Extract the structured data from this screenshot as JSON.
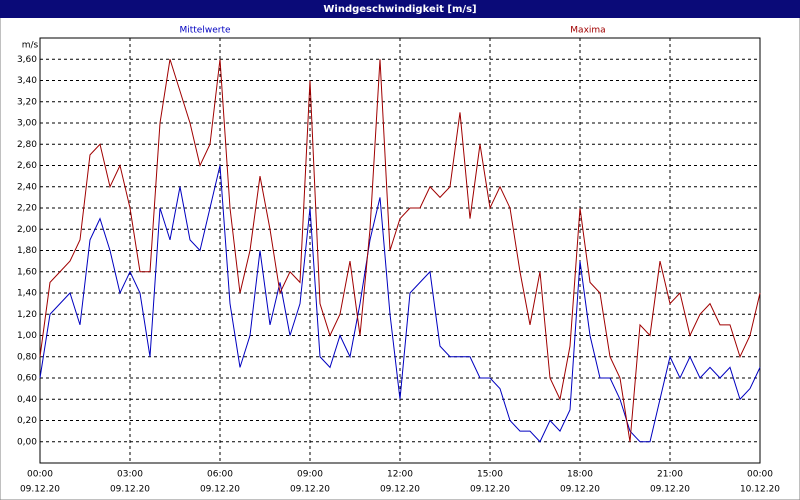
{
  "chart_data": {
    "type": "line",
    "title": "Windgeschwindigkeit [m/s]",
    "ylabel": "m/s",
    "x": [
      0,
      20,
      40,
      60,
      80,
      100,
      120,
      140,
      160,
      180,
      200,
      220,
      240,
      260,
      280,
      300,
      320,
      340,
      360,
      380,
      400,
      420,
      440,
      460,
      480,
      500,
      520,
      540,
      560,
      580,
      600,
      620,
      640,
      660,
      680,
      700,
      720,
      740,
      760,
      780,
      800,
      820,
      840,
      860,
      880,
      900,
      920,
      940,
      960,
      980,
      1000,
      1020,
      1040,
      1060,
      1080,
      1100,
      1120,
      1140,
      1160,
      1180,
      1200,
      1220,
      1240,
      1260,
      1280,
      1300,
      1320,
      1340,
      1360,
      1380,
      1400,
      1420,
      1440
    ],
    "series": [
      {
        "name": "Mittelwerte",
        "color": "#0000c0",
        "values": [
          0.6,
          1.2,
          1.3,
          1.4,
          1.1,
          1.9,
          2.1,
          1.8,
          1.4,
          1.6,
          1.4,
          0.8,
          2.2,
          1.9,
          2.4,
          1.9,
          1.8,
          2.2,
          2.6,
          1.3,
          0.7,
          1.0,
          1.8,
          1.1,
          1.5,
          1.0,
          1.3,
          2.2,
          0.8,
          0.7,
          1.0,
          0.8,
          1.3,
          1.9,
          2.3,
          1.2,
          0.4,
          1.4,
          1.5,
          1.6,
          0.9,
          0.8,
          0.8,
          0.8,
          0.6,
          0.6,
          0.5,
          0.2,
          0.1,
          0.1,
          0.0,
          0.2,
          0.1,
          0.3,
          1.7,
          1.0,
          0.6,
          0.6,
          0.4,
          0.1,
          0.0,
          0.0,
          0.4,
          0.8,
          0.6,
          0.8,
          0.6,
          0.7,
          0.6,
          0.7,
          0.4,
          0.5,
          0.7
        ]
      },
      {
        "name": "Maxima",
        "color": "#a00000",
        "values": [
          0.8,
          1.5,
          1.6,
          1.7,
          1.9,
          2.7,
          2.8,
          2.4,
          2.6,
          2.2,
          1.6,
          1.6,
          3.0,
          3.6,
          3.3,
          3.0,
          2.6,
          2.8,
          3.6,
          2.2,
          1.4,
          1.8,
          2.5,
          2.0,
          1.4,
          1.6,
          1.5,
          3.4,
          1.3,
          1.0,
          1.2,
          1.7,
          1.0,
          2.0,
          3.6,
          1.8,
          2.1,
          2.2,
          2.2,
          2.4,
          2.3,
          2.4,
          3.1,
          2.1,
          2.8,
          2.2,
          2.4,
          2.2,
          1.6,
          1.1,
          1.6,
          0.6,
          0.4,
          0.9,
          2.2,
          1.5,
          1.4,
          0.8,
          0.6,
          0.0,
          1.1,
          1.0,
          1.7,
          1.3,
          1.4,
          1.0,
          1.2,
          1.3,
          1.1,
          1.1,
          0.8,
          1.0,
          1.4
        ]
      }
    ],
    "xlim": [
      0,
      1440
    ],
    "xticks": [
      {
        "value": 0,
        "label": "00:00"
      },
      {
        "value": 180,
        "label": "03:00"
      },
      {
        "value": 360,
        "label": "06:00"
      },
      {
        "value": 540,
        "label": "09:00"
      },
      {
        "value": 720,
        "label": "12:00"
      },
      {
        "value": 900,
        "label": "15:00"
      },
      {
        "value": 1080,
        "label": "18:00"
      },
      {
        "value": 1260,
        "label": "21:00"
      },
      {
        "value": 1440,
        "label": "00:00"
      }
    ],
    "xtick_dates": [
      "09.12.20",
      "09.12.20",
      "09.12.20",
      "09.12.20",
      "09.12.20",
      "09.12.20",
      "09.12.20",
      "09.12.20",
      "10.12.20"
    ],
    "ylim": [
      -0.2,
      3.8
    ],
    "yticks": [
      {
        "value": 0,
        "label": "0,00"
      },
      {
        "value": 0.2,
        "label": "0,20"
      },
      {
        "value": 0.4,
        "label": "0,40"
      },
      {
        "value": 0.6,
        "label": "0,60"
      },
      {
        "value": 0.8,
        "label": "0,80"
      },
      {
        "value": 1.0,
        "label": "1,00"
      },
      {
        "value": 1.2,
        "label": "1,20"
      },
      {
        "value": 1.4,
        "label": "1,40"
      },
      {
        "value": 1.6,
        "label": "1,60"
      },
      {
        "value": 1.8,
        "label": "1,80"
      },
      {
        "value": 2.0,
        "label": "2,00"
      },
      {
        "value": 2.2,
        "label": "2,20"
      },
      {
        "value": 2.4,
        "label": "2,40"
      },
      {
        "value": 2.6,
        "label": "2,60"
      },
      {
        "value": 2.8,
        "label": "2,80"
      },
      {
        "value": 3.0,
        "label": "3,00"
      },
      {
        "value": 3.2,
        "label": "3,20"
      },
      {
        "value": 3.4,
        "label": "3,40"
      },
      {
        "value": 3.6,
        "label": "3,60"
      }
    ],
    "grid": true
  }
}
